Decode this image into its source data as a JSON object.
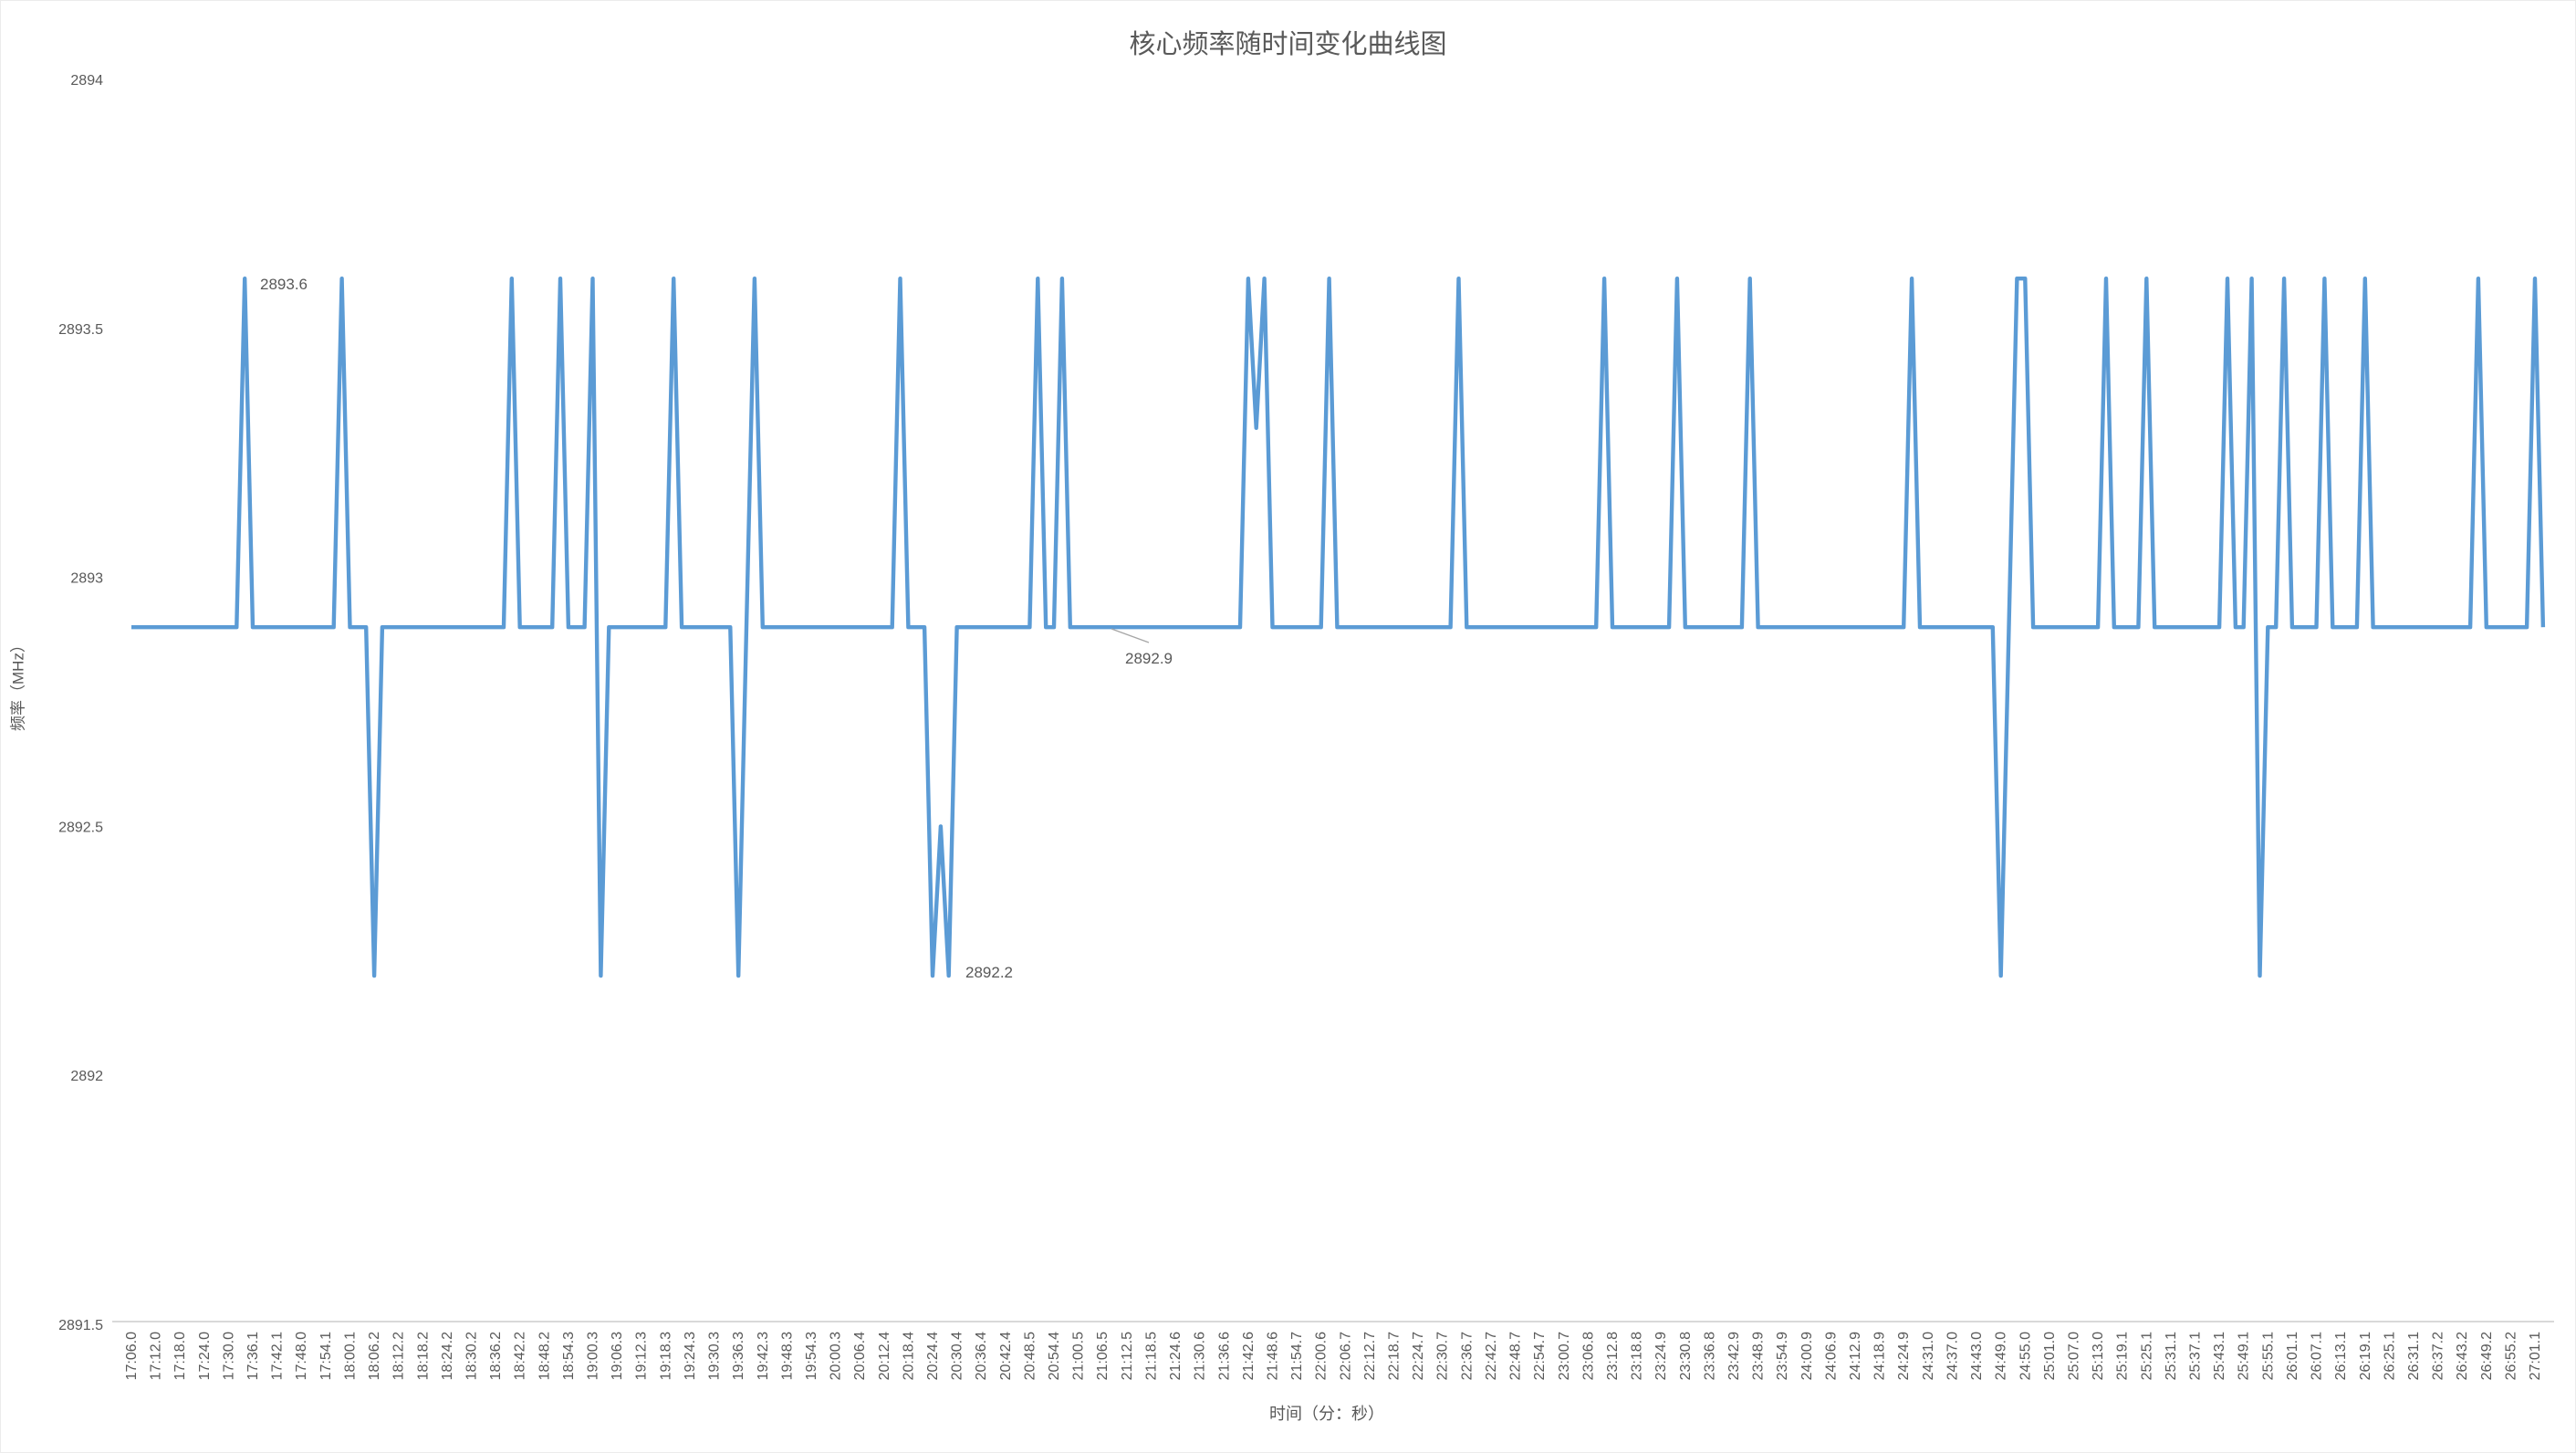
{
  "page": {
    "title": "核心频率随时间变化曲线图"
  },
  "chart_data": {
    "type": "line",
    "title": "核心频率随时间变化曲线图",
    "xlabel": "时间（分：秒）",
    "ylabel": "频率（MHz）",
    "ylim": [
      2891.5,
      2894
    ],
    "grid": false,
    "legend": "none",
    "line_color": "#5B9BD5",
    "text_color": "#595959",
    "axis_line_color": "#d9d9d9",
    "leader_line_color": "#a6a6a6",
    "y_tick_labels": [
      "2894",
      "2893.5",
      "2893",
      "2892.5",
      "2892",
      "2891.5"
    ],
    "x_tick_labels": [
      "17:06.0",
      "17:12.0",
      "17:18.0",
      "17:24.0",
      "17:30.0",
      "17:36.1",
      "17:42.1",
      "17:48.0",
      "17:54.1",
      "18:00.1",
      "18:06.2",
      "18:12.2",
      "18:18.2",
      "18:24.2",
      "18:30.2",
      "18:36.2",
      "18:42.2",
      "18:48.2",
      "18:54.3",
      "19:00.3",
      "19:06.3",
      "19:12.3",
      "19:18.3",
      "19:24.3",
      "19:30.3",
      "19:36.3",
      "19:42.3",
      "19:48.3",
      "19:54.3",
      "20:00.3",
      "20:06.4",
      "20:12.4",
      "20:18.4",
      "20:24.4",
      "20:30.4",
      "20:36.4",
      "20:42.4",
      "20:48.5",
      "20:54.4",
      "21:00.5",
      "21:06.5",
      "21:12.5",
      "21:18.5",
      "21:24.6",
      "21:30.6",
      "21:36.6",
      "21:42.6",
      "21:48.6",
      "21:54.7",
      "22:00.6",
      "22:06.7",
      "22:12.7",
      "22:18.7",
      "22:24.7",
      "22:30.7",
      "22:36.7",
      "22:42.7",
      "22:48.7",
      "22:54.7",
      "23:00.7",
      "23:06.8",
      "23:12.8",
      "23:18.8",
      "23:24.9",
      "23:30.8",
      "23:36.8",
      "23:42.9",
      "23:48.9",
      "23:54.9",
      "24:00.9",
      "24:06.9",
      "24:12.9",
      "24:18.9",
      "24:24.9",
      "24:31.0",
      "24:37.0",
      "24:43.0",
      "24:49.0",
      "24:55.0",
      "25:01.0",
      "25:07.0",
      "25:13.0",
      "25:19.1",
      "25:25.1",
      "25:31.1",
      "25:37.1",
      "25:43.1",
      "25:49.1",
      "25:55.1",
      "26:01.1",
      "26:07.1",
      "26:13.1",
      "26:19.1",
      "26:25.1",
      "26:31.1",
      "26:37.2",
      "26:43.2",
      "26:49.2",
      "26:55.2",
      "27:01.1"
    ],
    "samples_per_tick": 3,
    "sample_interval_seconds": 2,
    "n_points": 299,
    "baseline_value": 2892.9,
    "deviations": {
      "14": 2893.6,
      "26": 2893.6,
      "30": 2892.2,
      "47": 2893.6,
      "53": 2893.6,
      "57": 2893.6,
      "58": 2892.2,
      "67": 2893.6,
      "75": 2892.2,
      "77": 2893.6,
      "95": 2893.6,
      "99": 2892.2,
      "100": 2892.5,
      "101": 2892.2,
      "112": 2893.6,
      "115": 2893.6,
      "138": 2893.6,
      "139": 2893.3,
      "140": 2893.6,
      "148": 2893.6,
      "164": 2893.6,
      "182": 2893.6,
      "191": 2893.6,
      "200": 2893.6,
      "220": 2893.6,
      "231": 2892.2,
      "233": 2893.6,
      "234": 2893.6,
      "244": 2893.6,
      "249": 2893.6,
      "259": 2893.6,
      "262": 2893.6,
      "263": 2892.2,
      "266": 2893.6,
      "271": 2893.6,
      "276": 2893.6,
      "290": 2893.6,
      "297": 2893.6
    },
    "annotations": [
      {
        "text": "2893.6",
        "x": 284,
        "y": 310,
        "anchor": "start",
        "leader": null
      },
      {
        "text": "2892.9",
        "x": 1258,
        "y": 720,
        "anchor": "middle",
        "leader": [
          1217,
          688,
          1258,
          703
        ]
      },
      {
        "text": "2892.2",
        "x": 1057,
        "y": 1064,
        "anchor": "start",
        "leader": null
      }
    ]
  }
}
